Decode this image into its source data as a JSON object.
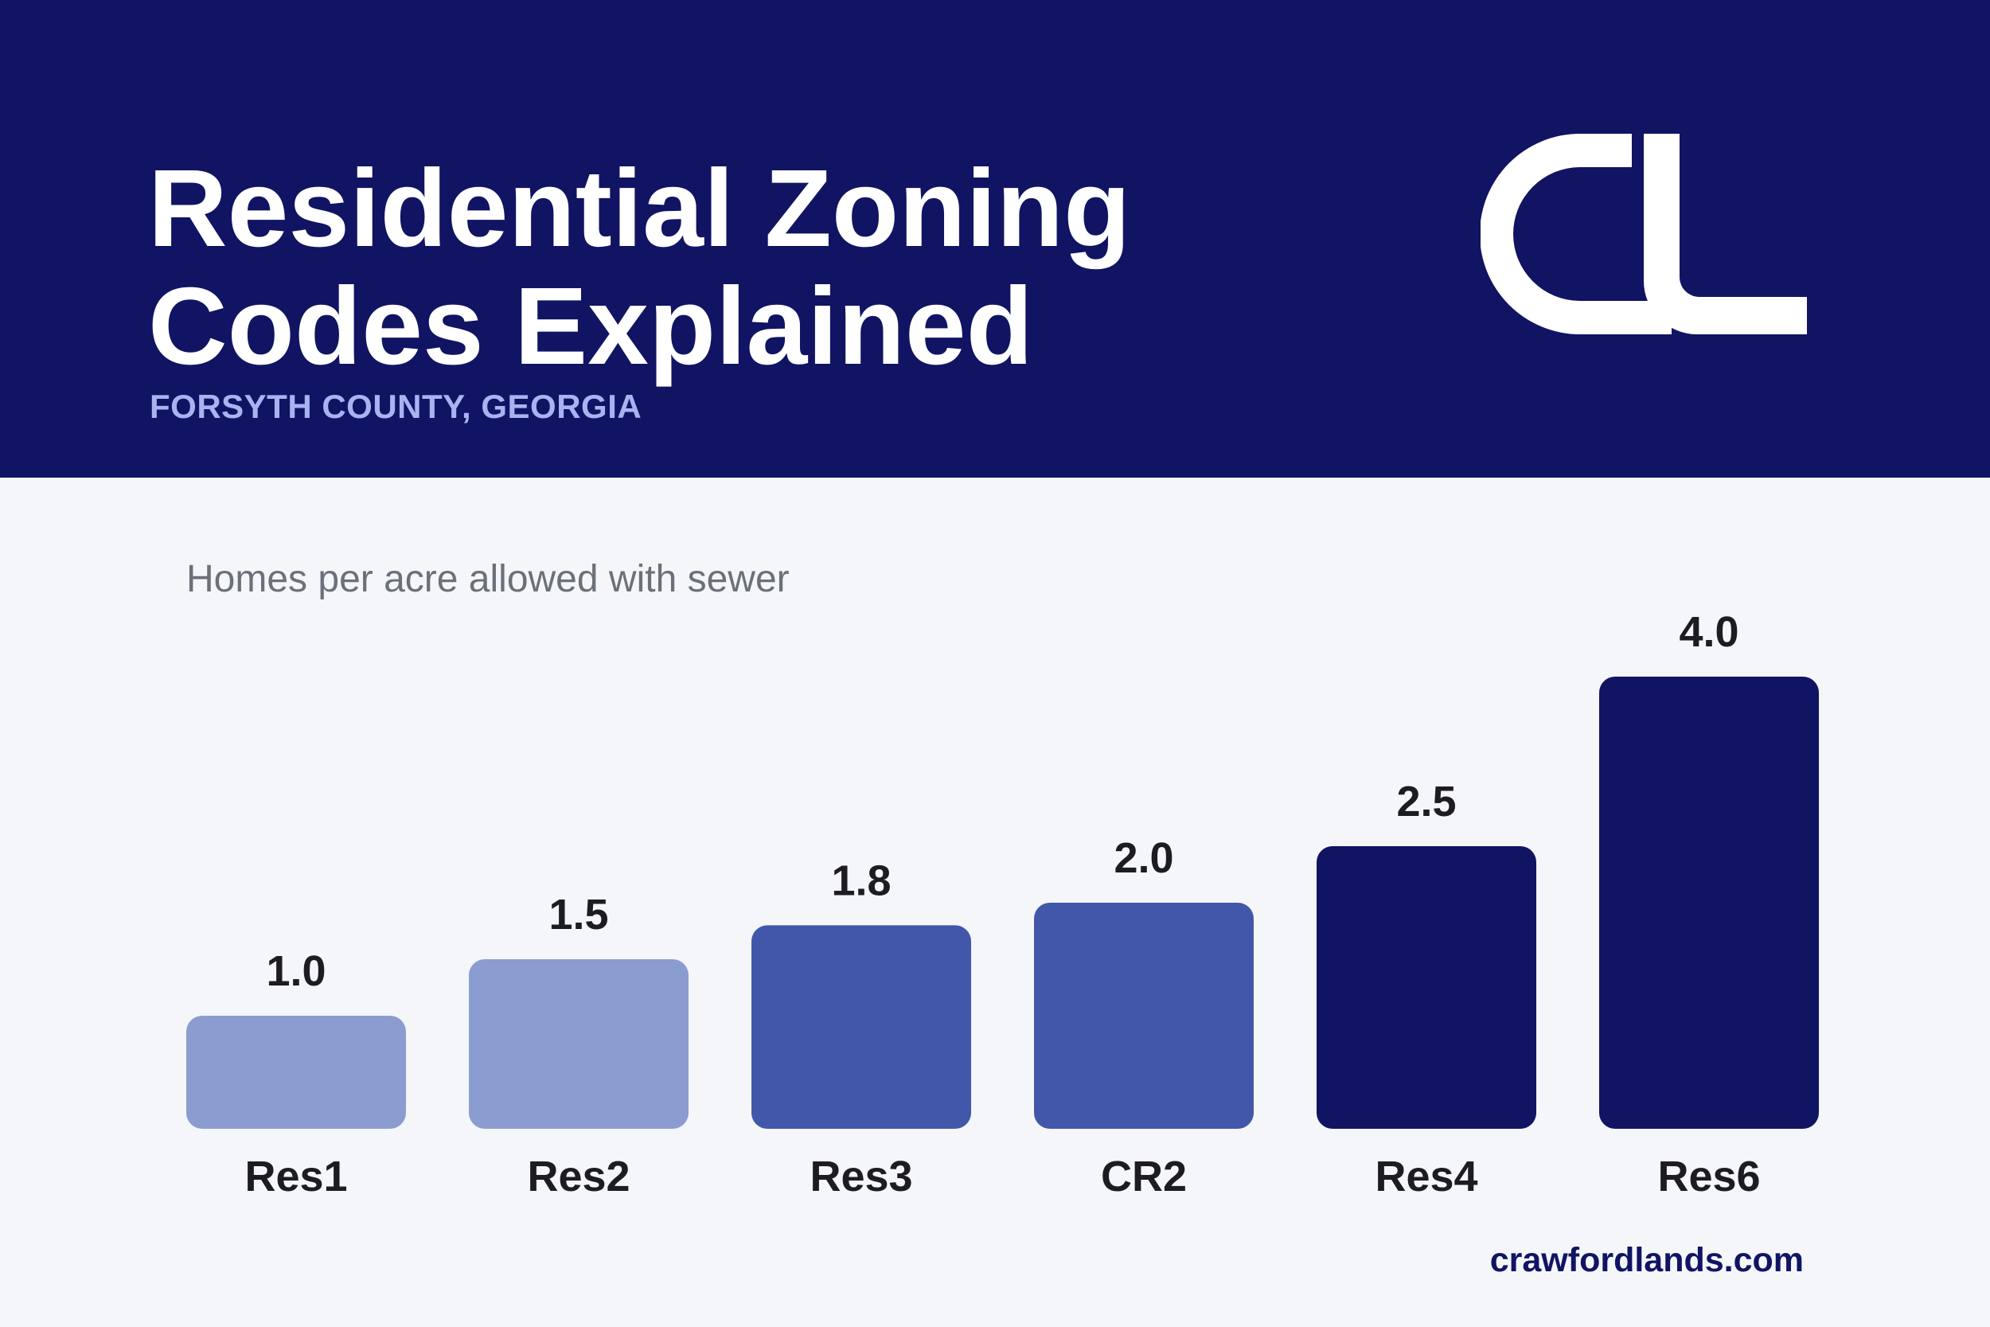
{
  "header": {
    "title_line1": "Residential Zoning",
    "title_line2": "Codes Explained",
    "subtitle": "FORSYTH COUNTY, GEORGIA",
    "logo_name": "cl-monogram-logo",
    "background_color": "#111463"
  },
  "chart_data": {
    "type": "bar",
    "title": "Homes per acre allowed with sewer",
    "categories": [
      "Res1",
      "Res2",
      "Res3",
      "CR2",
      "Res4",
      "Res6"
    ],
    "values": [
      1.0,
      1.5,
      1.8,
      2.0,
      2.5,
      4.0
    ],
    "value_labels": [
      "1.0",
      "1.5",
      "1.8",
      "2.0",
      "2.5",
      "4.0"
    ],
    "bar_colors": [
      "#8b9cd1",
      "#8b9cd1",
      "#4257a9",
      "#4257a9",
      "#111463",
      "#111463"
    ],
    "ylim": [
      0,
      4.0
    ],
    "grid": false,
    "legend": "none"
  },
  "footer": {
    "website": "crawfordlands.com"
  },
  "colors": {
    "navy": "#111463",
    "page_background": "#f4f6fa",
    "subtitle": "#aab3f2",
    "label_text": "#1c1c22"
  }
}
